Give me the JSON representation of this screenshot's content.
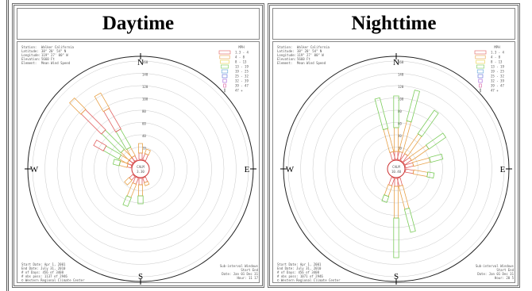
{
  "panels": [
    {
      "id": "day",
      "title": "Daytime",
      "station": {
        "labels": [
          "Station:",
          "Latitude:",
          "Longitude:",
          "Elevation:",
          "Element:"
        ],
        "values": [
          "Walker California",
          "38° 20' 54\" N",
          "119° 27' 00\" W",
          "5660 Ft",
          "Mean Wind Speed"
        ]
      },
      "compass": {
        "n": "N",
        "s": "S",
        "e": "E",
        "w": "W"
      },
      "calm": {
        "label": "CALM",
        "value": "3.30"
      },
      "ring_labels": [
        "20",
        "40",
        "60",
        "80",
        "100",
        "120",
        "140",
        "160"
      ],
      "legend": {
        "title": "MPH",
        "items": [
          "1.3 - 4",
          "4 - 8",
          "8 - 13",
          "13 - 19",
          "19 - 25",
          "25 - 32",
          "32 - 39",
          "39 - 47",
          "47 +"
        ]
      },
      "footer": {
        "lines": [
          "Start Date: Apr 1, 2001",
          "End Date: July 31, 2010",
          "# of Days: 456 of 3408",
          "# obs poss: 1137 of 2946",
          "© Western Regional Climate Center"
        ]
      },
      "footer_right": {
        "lines": [
          "Sub-interval Windows",
          "Start    End",
          "Date: Jan 01  Dec 31",
          "Hour:  11    17"
        ]
      },
      "petals": [
        {
          "dir": 0,
          "segs": [
            8,
            12
          ]
        },
        {
          "dir": 22.5,
          "segs": [
            8,
            6
          ]
        },
        {
          "dir": 315,
          "segs": [
            6,
            14,
            34,
            36,
            20
          ]
        },
        {
          "dir": 330,
          "segs": [
            6,
            12,
            26,
            30,
            22
          ]
        },
        {
          "dir": 300,
          "segs": [
            6,
            12,
            22,
            14
          ]
        },
        {
          "dir": 285,
          "segs": [
            5,
            10,
            8
          ]
        },
        {
          "dir": 180,
          "segs": [
            8,
            14,
            10
          ]
        },
        {
          "dir": 202.5,
          "segs": [
            8,
            18,
            12
          ]
        },
        {
          "dir": 225,
          "segs": [
            6,
            8
          ]
        },
        {
          "dir": 157.5,
          "segs": [
            6,
            4
          ]
        }
      ]
    },
    {
      "id": "night",
      "title": "Nighttime",
      "station": {
        "labels": [
          "Station:",
          "Latitude:",
          "Longitude:",
          "Elevation:",
          "Element:"
        ],
        "values": [
          "Walker California",
          "38° 20' 54\" N",
          "119° 27' 00\" W",
          "5660 Ft",
          "Mean Wind Speed"
        ]
      },
      "compass": {
        "n": "N",
        "s": "S",
        "e": "E",
        "w": "W"
      },
      "calm": {
        "label": "CALM",
        "value": "10.40"
      },
      "ring_labels": [
        "20",
        "40",
        "60",
        "80",
        "100",
        "120",
        "140",
        "160"
      ],
      "legend": {
        "title": "MPH",
        "items": [
          "1.3 - 4",
          "4 - 8",
          "8 - 13",
          "13 - 19",
          "19 - 25",
          "25 - 32",
          "32 - 39",
          "39 - 47",
          "47 +"
        ]
      },
      "footer": {
        "lines": [
          "Start Date: Apr 1, 2001",
          "End Date: July 31, 2010",
          "# of Days: 456 of 3408",
          "# obs poss: 1071 of 2946",
          "© Western Regional Climate Center"
        ]
      },
      "footer_right": {
        "lines": [
          "Sub-interval Windows",
          "Start    End",
          "Date: Jan 01  Dec 31",
          "Hour:  20     5"
        ]
      },
      "petals": [
        {
          "dir": 0,
          "segs": [
            10,
            30,
            40
          ]
        },
        {
          "dir": 15,
          "segs": [
            10,
            40,
            40
          ]
        },
        {
          "dir": 35,
          "segs": [
            10,
            30,
            36
          ]
        },
        {
          "dir": 55,
          "segs": [
            10,
            26,
            26
          ]
        },
        {
          "dir": 75,
          "segs": [
            10,
            22,
            16
          ]
        },
        {
          "dir": 100,
          "segs": [
            10,
            18,
            8
          ]
        },
        {
          "dir": 165,
          "segs": [
            10,
            30,
            30
          ]
        },
        {
          "dir": 180,
          "segs": [
            10,
            40,
            50
          ]
        },
        {
          "dir": 200,
          "segs": [
            10,
            14,
            8
          ]
        },
        {
          "dir": 345,
          "segs": [
            10,
            30,
            40
          ]
        }
      ]
    }
  ],
  "colors": {
    "petal_outer": "#e06060",
    "petal_mid": "#e8a24a",
    "petal_inner": "#7bcc5a",
    "ring": "#c8c8c8"
  }
}
